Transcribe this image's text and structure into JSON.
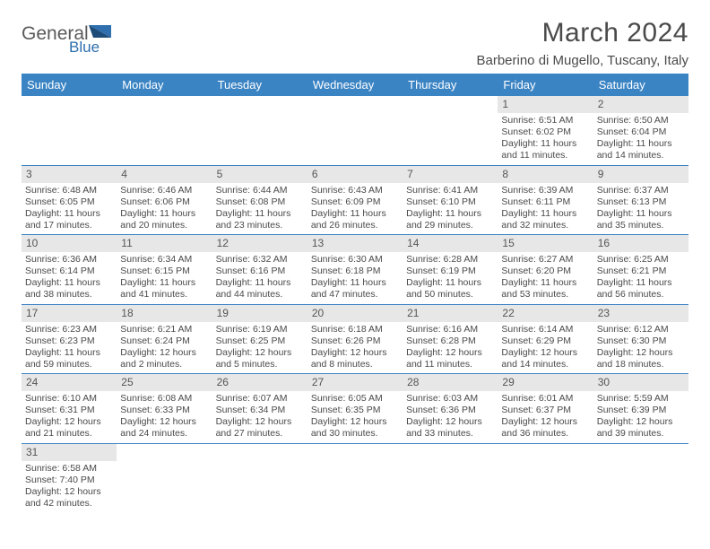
{
  "logo": {
    "text1": "General",
    "text2": "Blue",
    "text1_color": "#5a5a5a",
    "text2_color": "#2f6fae"
  },
  "title": "March 2024",
  "location": "Barberino di Mugello, Tuscany, Italy",
  "header_bg": "#3b84c4",
  "daynum_bg": "#e7e7e7",
  "border_color": "#3b84c4",
  "weekdays": [
    "Sunday",
    "Monday",
    "Tuesday",
    "Wednesday",
    "Thursday",
    "Friday",
    "Saturday"
  ],
  "grid": [
    [
      null,
      null,
      null,
      null,
      null,
      {
        "n": "1",
        "sr": "6:51 AM",
        "ss": "6:02 PM",
        "dl": "11 hours and 11 minutes."
      },
      {
        "n": "2",
        "sr": "6:50 AM",
        "ss": "6:04 PM",
        "dl": "11 hours and 14 minutes."
      }
    ],
    [
      {
        "n": "3",
        "sr": "6:48 AM",
        "ss": "6:05 PM",
        "dl": "11 hours and 17 minutes."
      },
      {
        "n": "4",
        "sr": "6:46 AM",
        "ss": "6:06 PM",
        "dl": "11 hours and 20 minutes."
      },
      {
        "n": "5",
        "sr": "6:44 AM",
        "ss": "6:08 PM",
        "dl": "11 hours and 23 minutes."
      },
      {
        "n": "6",
        "sr": "6:43 AM",
        "ss": "6:09 PM",
        "dl": "11 hours and 26 minutes."
      },
      {
        "n": "7",
        "sr": "6:41 AM",
        "ss": "6:10 PM",
        "dl": "11 hours and 29 minutes."
      },
      {
        "n": "8",
        "sr": "6:39 AM",
        "ss": "6:11 PM",
        "dl": "11 hours and 32 minutes."
      },
      {
        "n": "9",
        "sr": "6:37 AM",
        "ss": "6:13 PM",
        "dl": "11 hours and 35 minutes."
      }
    ],
    [
      {
        "n": "10",
        "sr": "6:36 AM",
        "ss": "6:14 PM",
        "dl": "11 hours and 38 minutes."
      },
      {
        "n": "11",
        "sr": "6:34 AM",
        "ss": "6:15 PM",
        "dl": "11 hours and 41 minutes."
      },
      {
        "n": "12",
        "sr": "6:32 AM",
        "ss": "6:16 PM",
        "dl": "11 hours and 44 minutes."
      },
      {
        "n": "13",
        "sr": "6:30 AM",
        "ss": "6:18 PM",
        "dl": "11 hours and 47 minutes."
      },
      {
        "n": "14",
        "sr": "6:28 AM",
        "ss": "6:19 PM",
        "dl": "11 hours and 50 minutes."
      },
      {
        "n": "15",
        "sr": "6:27 AM",
        "ss": "6:20 PM",
        "dl": "11 hours and 53 minutes."
      },
      {
        "n": "16",
        "sr": "6:25 AM",
        "ss": "6:21 PM",
        "dl": "11 hours and 56 minutes."
      }
    ],
    [
      {
        "n": "17",
        "sr": "6:23 AM",
        "ss": "6:23 PM",
        "dl": "11 hours and 59 minutes."
      },
      {
        "n": "18",
        "sr": "6:21 AM",
        "ss": "6:24 PM",
        "dl": "12 hours and 2 minutes."
      },
      {
        "n": "19",
        "sr": "6:19 AM",
        "ss": "6:25 PM",
        "dl": "12 hours and 5 minutes."
      },
      {
        "n": "20",
        "sr": "6:18 AM",
        "ss": "6:26 PM",
        "dl": "12 hours and 8 minutes."
      },
      {
        "n": "21",
        "sr": "6:16 AM",
        "ss": "6:28 PM",
        "dl": "12 hours and 11 minutes."
      },
      {
        "n": "22",
        "sr": "6:14 AM",
        "ss": "6:29 PM",
        "dl": "12 hours and 14 minutes."
      },
      {
        "n": "23",
        "sr": "6:12 AM",
        "ss": "6:30 PM",
        "dl": "12 hours and 18 minutes."
      }
    ],
    [
      {
        "n": "24",
        "sr": "6:10 AM",
        "ss": "6:31 PM",
        "dl": "12 hours and 21 minutes."
      },
      {
        "n": "25",
        "sr": "6:08 AM",
        "ss": "6:33 PM",
        "dl": "12 hours and 24 minutes."
      },
      {
        "n": "26",
        "sr": "6:07 AM",
        "ss": "6:34 PM",
        "dl": "12 hours and 27 minutes."
      },
      {
        "n": "27",
        "sr": "6:05 AM",
        "ss": "6:35 PM",
        "dl": "12 hours and 30 minutes."
      },
      {
        "n": "28",
        "sr": "6:03 AM",
        "ss": "6:36 PM",
        "dl": "12 hours and 33 minutes."
      },
      {
        "n": "29",
        "sr": "6:01 AM",
        "ss": "6:37 PM",
        "dl": "12 hours and 36 minutes."
      },
      {
        "n": "30",
        "sr": "5:59 AM",
        "ss": "6:39 PM",
        "dl": "12 hours and 39 minutes."
      }
    ],
    [
      {
        "n": "31",
        "sr": "6:58 AM",
        "ss": "7:40 PM",
        "dl": "12 hours and 42 minutes."
      },
      null,
      null,
      null,
      null,
      null,
      null
    ]
  ],
  "labels": {
    "sunrise": "Sunrise:",
    "sunset": "Sunset:",
    "daylight": "Daylight:"
  }
}
